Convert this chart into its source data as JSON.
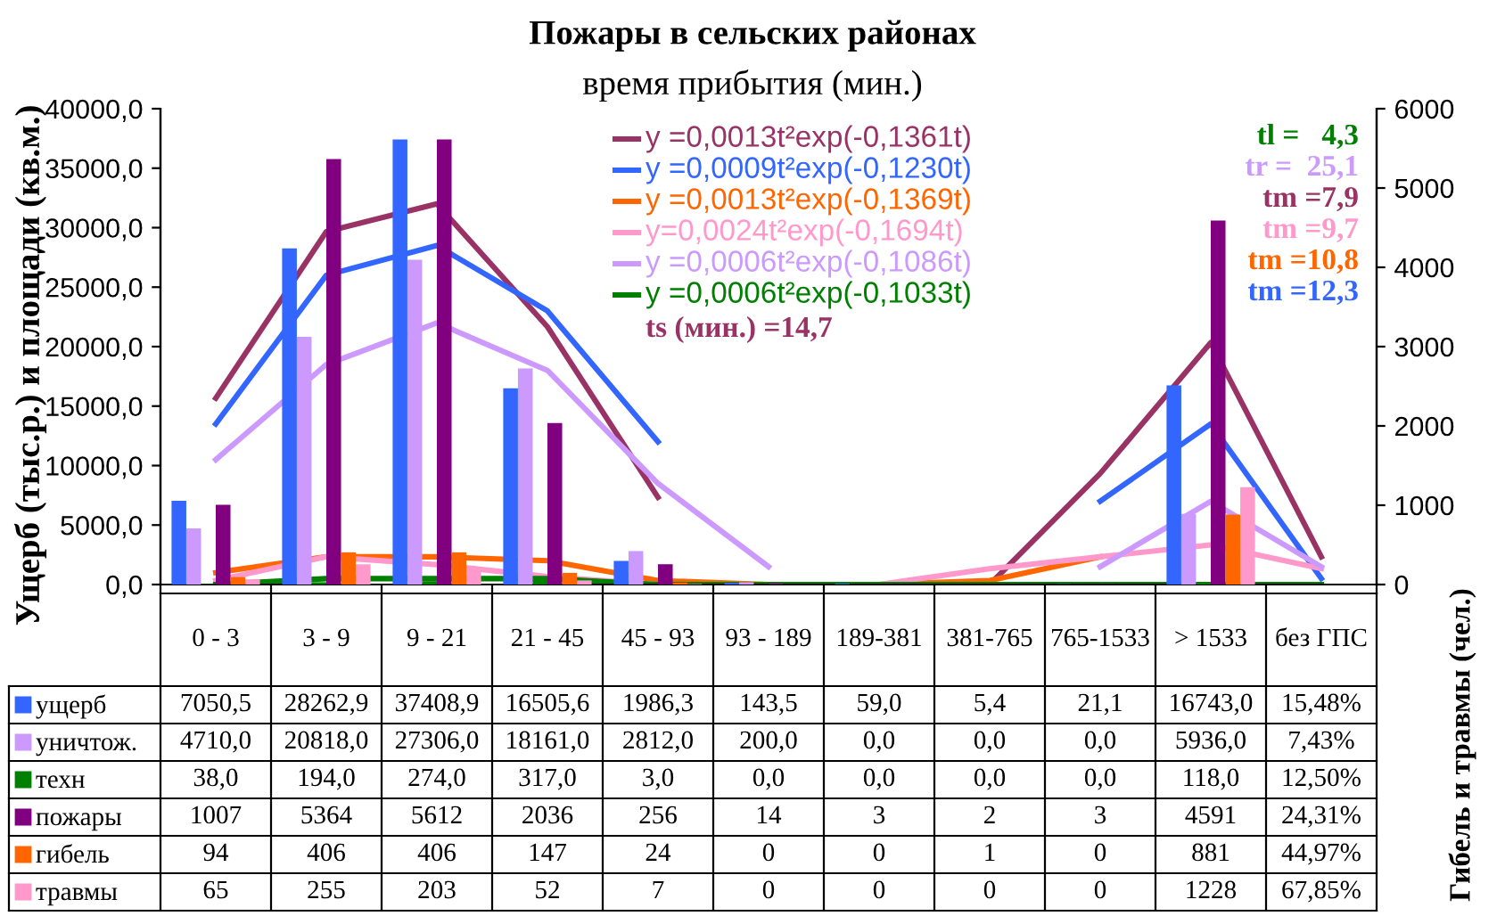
{
  "chart_data": {
    "type": "bar",
    "title": "Пожары в сельских районах",
    "subtitle": "время прибытия (мин.)",
    "ylabel": "Ущерб (тыс.р.) и площади (кв.м.)",
    "y2label": "Гибель и травмы (чел.)",
    "categories": [
      "0 - 3",
      "3 - 9",
      "9 - 21",
      "21 - 45",
      "45 - 93",
      "93 - 189",
      "189-381",
      "381-765",
      "765-1533",
      "> 1533",
      "без ГПС"
    ],
    "ylim": [
      0,
      40000
    ],
    "yticks": [
      {
        "value": 0,
        "label": "0,0"
      },
      {
        "value": 5000,
        "label": "5000,0"
      },
      {
        "value": 10000,
        "label": "10000,0"
      },
      {
        "value": 15000,
        "label": "15000,0"
      },
      {
        "value": 20000,
        "label": "20000,0"
      },
      {
        "value": 25000,
        "label": "25000,0"
      },
      {
        "value": 30000,
        "label": "30000,0"
      },
      {
        "value": 35000,
        "label": "35000,0"
      },
      {
        "value": 40000,
        "label": "40000,0"
      }
    ],
    "y2lim": [
      0,
      6000
    ],
    "y2ticks": [
      0,
      1000,
      2000,
      3000,
      4000,
      5000,
      6000
    ],
    "grid": false,
    "legend": "bottom",
    "series": [
      {
        "name": "ущерб",
        "color": "#3366ff",
        "values": [
          7050.5,
          28262.9,
          37408.9,
          16505.6,
          1986.3,
          143.5,
          59.0,
          5.4,
          21.1,
          16743.0,
          null
        ],
        "value_labels": [
          "7050,5",
          "28262,9",
          "37408,9",
          "16505,6",
          "1986,3",
          "143,5",
          "59,0",
          "5,4",
          "21,1",
          "16743,0",
          "15,48%"
        ]
      },
      {
        "name": "уничтож.",
        "color": "#cc99ff",
        "values": [
          4710.0,
          20818.0,
          27306.0,
          18161.0,
          2812.0,
          200.0,
          0.0,
          0.0,
          0.0,
          5936.0,
          null
        ],
        "value_labels": [
          "4710,0",
          "20818,0",
          "27306,0",
          "18161,0",
          "2812,0",
          "200,0",
          "0,0",
          "0,0",
          "0,0",
          "5936,0",
          "7,43%"
        ]
      },
      {
        "name": "техн",
        "color": "#008000",
        "values": [
          38.0,
          194.0,
          274.0,
          317.0,
          3.0,
          0.0,
          0.0,
          0.0,
          0.0,
          118.0,
          null
        ],
        "value_labels": [
          "38,0",
          "194,0",
          "274,0",
          "317,0",
          "3,0",
          "0,0",
          "0,0",
          "0,0",
          "0,0",
          "118,0",
          "12,50%"
        ]
      },
      {
        "name": "пожары",
        "axis": "y2",
        "color": "#800080",
        "values": [
          1007,
          5364,
          5612,
          2036,
          256,
          14,
          3,
          2,
          3,
          4591,
          null
        ],
        "value_labels": [
          "1007",
          "5364",
          "5612",
          "2036",
          "256",
          "14",
          "3",
          "2",
          "3",
          "4591",
          "24,31%"
        ]
      },
      {
        "name": "гибель",
        "axis": "y2",
        "color": "#ff6600",
        "values": [
          94,
          406,
          406,
          147,
          24,
          0,
          0,
          1,
          0,
          881,
          null
        ],
        "value_labels": [
          "94",
          "406",
          "406",
          "147",
          "24",
          "0",
          "0",
          "1",
          "0",
          "881",
          "44,97%"
        ]
      },
      {
        "name": "травмы",
        "axis": "y2",
        "color": "#ff99cc",
        "values": [
          65,
          255,
          203,
          52,
          7,
          0,
          0,
          0,
          0,
          1228,
          null
        ],
        "value_labels": [
          "65",
          "255",
          "203",
          "52",
          "7",
          "0",
          "0",
          "0",
          "0",
          "1228",
          "67,85%"
        ]
      },
      {
        "name": "y =0,0013t²exp(-0,1361t)",
        "type": "line",
        "axis": "y2",
        "color": "#993366",
        "values": [
          2350,
          4450,
          4800,
          3250,
          1100,
          null,
          null,
          0,
          1400,
          3050,
          350
        ]
      },
      {
        "name": "y =0,0009t²exp(-0,1230t)",
        "type": "line",
        "color": "#3366ff",
        "values": [
          13500,
          26000,
          28500,
          23000,
          12000,
          null,
          null,
          null,
          7000,
          13500,
          500
        ]
      },
      {
        "name": "y =0,0013t²exp(-0,1369t)",
        "type": "line",
        "axis": "y2",
        "color": "#ff6600",
        "values": [
          150,
          350,
          350,
          300,
          50,
          0,
          0,
          50,
          350,
          null,
          null
        ]
      },
      {
        "name": "y=0,0024t²exp(-0,1694t)",
        "type": "line",
        "axis": "y2",
        "color": "#ff99cc",
        "values": [
          50,
          350,
          250,
          100,
          0,
          null,
          0,
          200,
          350,
          500,
          200
        ]
      },
      {
        "name": "y =0,0006t²exp(-0,1086t)",
        "type": "line",
        "color": "#cc99ff",
        "values": [
          10500,
          18500,
          22000,
          18000,
          8500,
          1500,
          null,
          null,
          1500,
          7000,
          1500
        ]
      },
      {
        "name": "y =0,0006t²exp(-0,1033t)",
        "type": "line",
        "color": "#008000",
        "values": [
          0,
          500,
          500,
          500,
          0,
          0,
          0,
          0,
          0,
          0,
          0
        ]
      }
    ],
    "annotations": [
      "ts (мин.) =14,7",
      "tl =   4,3",
      "tr =  25,1",
      "tm =7,9",
      "tm =9,7",
      "tm =10,8",
      "tm =12,3"
    ]
  }
}
